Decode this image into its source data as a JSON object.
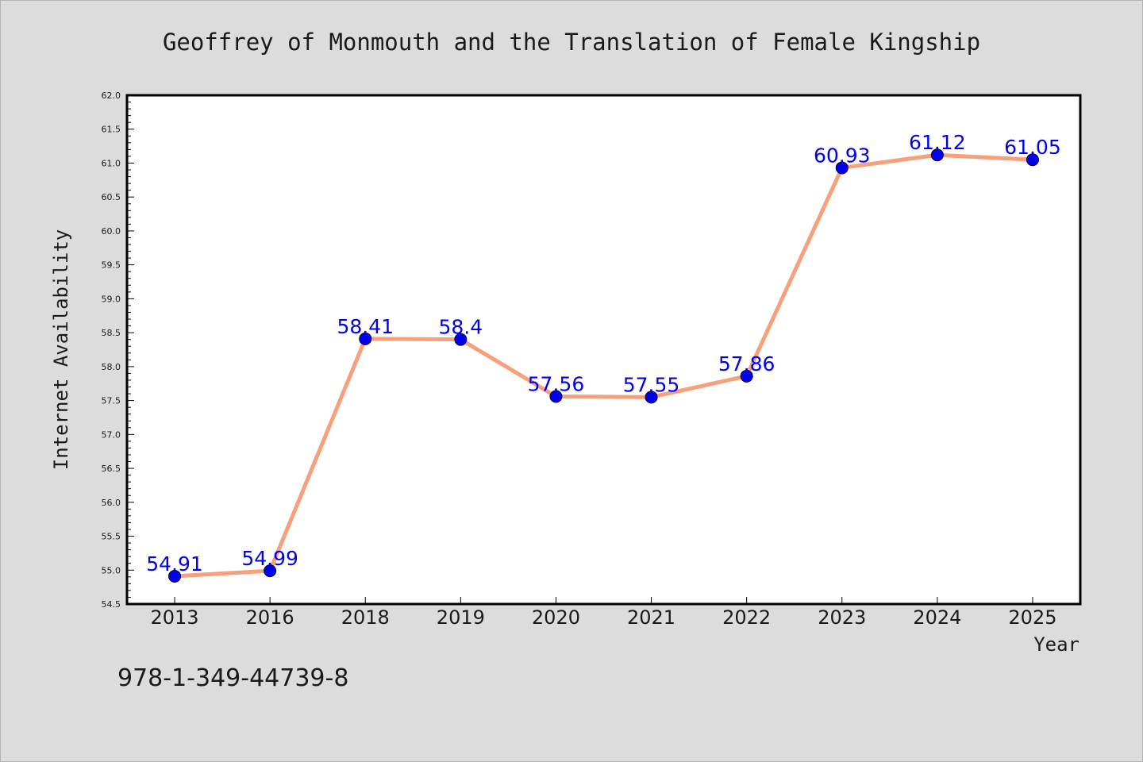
{
  "chart_data": {
    "type": "line",
    "title": "Geoffrey of Monmouth and the Translation of Female Kingship",
    "xlabel": "Year",
    "ylabel": "Internet Availability",
    "categories": [
      "2013",
      "2016",
      "2018",
      "2019",
      "2020",
      "2021",
      "2022",
      "2023",
      "2024",
      "2025"
    ],
    "values": [
      54.91,
      54.99,
      58.41,
      58.4,
      57.56,
      57.55,
      57.86,
      60.93,
      61.12,
      61.05
    ],
    "data_labels": [
      "54.91",
      "54.99",
      "58.41",
      "58.4",
      "57.56",
      "57.55",
      "57.86",
      "60.93",
      "61.12",
      "61.05"
    ],
    "ylim": [
      54.5,
      62.0
    ],
    "yticks": [
      "54.5",
      "55.0",
      "55.5",
      "56.0",
      "56.5",
      "57.0",
      "57.5",
      "58.0",
      "58.5",
      "59.0",
      "59.5",
      "60.0",
      "60.5",
      "61.0",
      "61.5",
      "62.0"
    ],
    "grid": false,
    "legend": "none",
    "line_color": "#f7a07c",
    "marker_color": "#0000ee",
    "label_color": "#0000ee",
    "background_color": "#dcdcdc",
    "plot_background": "#ffffff"
  },
  "footer": {
    "isbn": "978-1-349-44739-8"
  }
}
